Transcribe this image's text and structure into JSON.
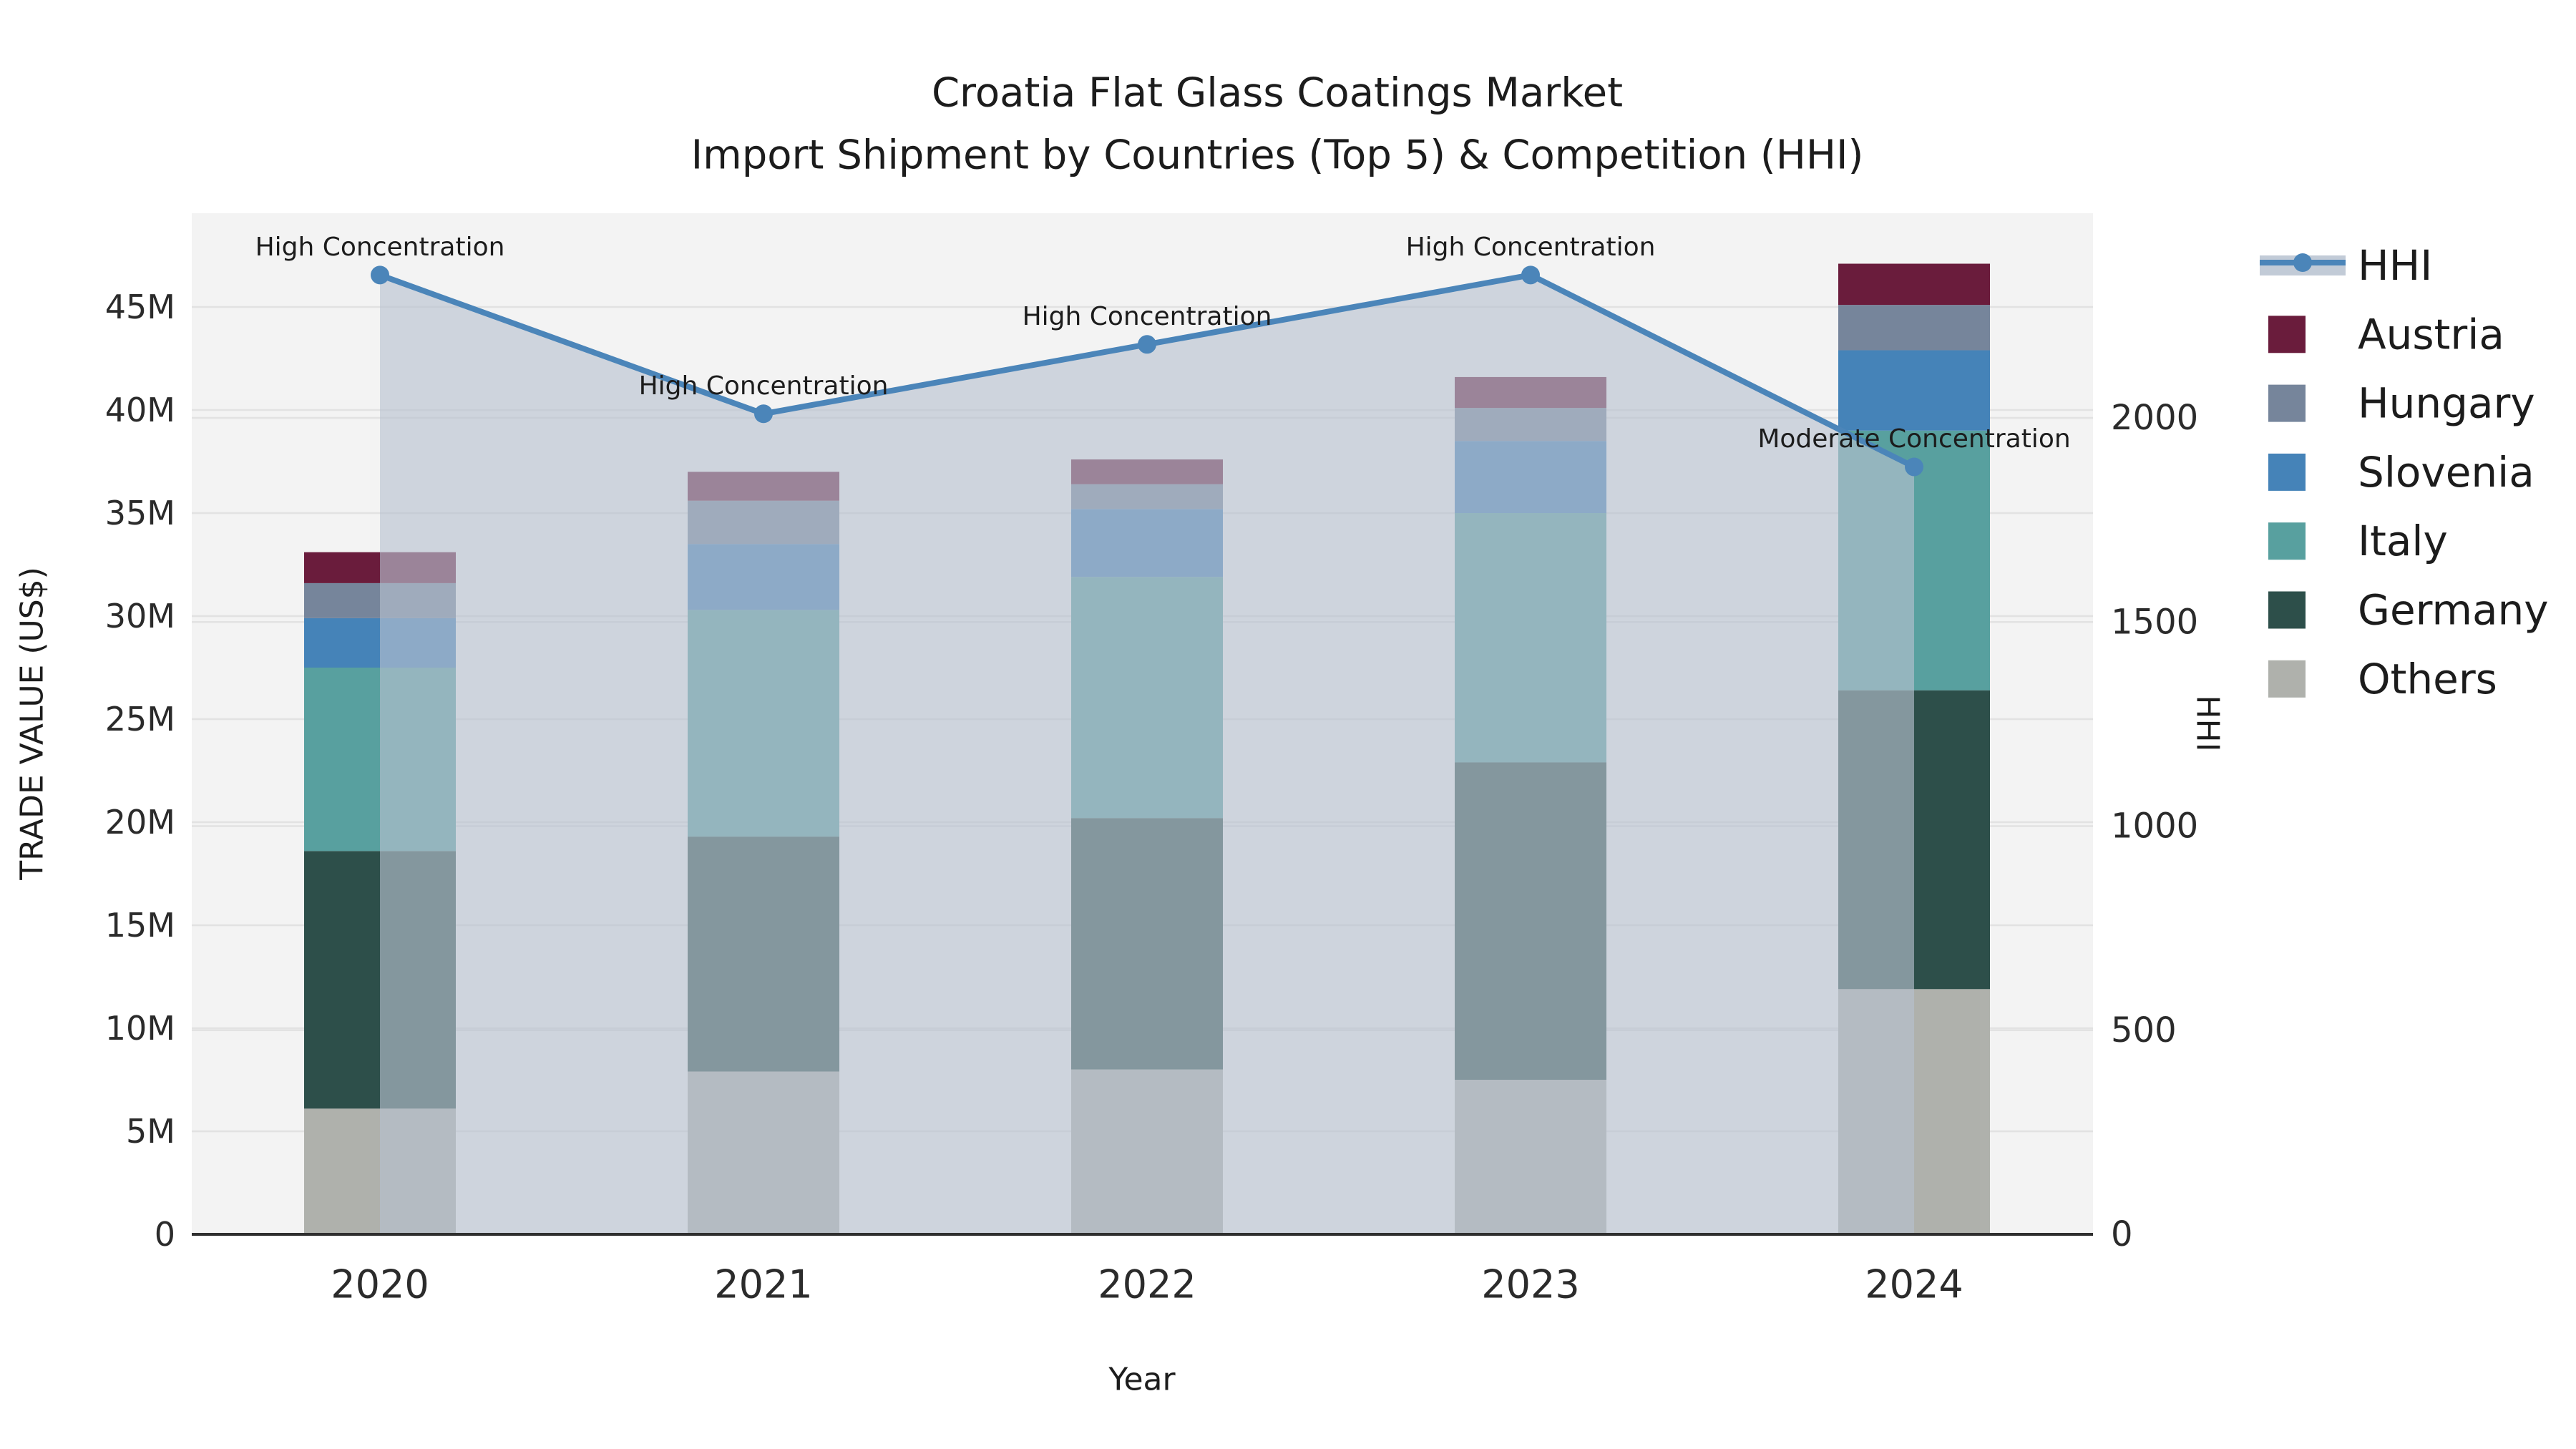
{
  "title": {
    "line1": "Croatia Flat Glass Coatings Market",
    "line2": "Import Shipment by Countries (Top 5) & Competition (HHI)"
  },
  "chart_data": {
    "type": "stacked-bar+line",
    "unit": "US$ millions (left axis), HHI index (right axis)",
    "x_categories": [
      "2020",
      "2021",
      "2022",
      "2023",
      "2024"
    ],
    "xlabel": "Year",
    "ylabel_left": "TRADE VALUE (US$)",
    "ylabel_right": "HHI",
    "ylim_left_millions": [
      0,
      49.5
    ],
    "ylim_right_hhi": [
      0,
      2500
    ],
    "grid": "horizontal",
    "y_left_ticks": [
      {
        "v": 0,
        "label": "0"
      },
      {
        "v": 5,
        "label": "5M"
      },
      {
        "v": 10,
        "label": "10M"
      },
      {
        "v": 15,
        "label": "15M"
      },
      {
        "v": 20,
        "label": "20M"
      },
      {
        "v": 25,
        "label": "25M"
      },
      {
        "v": 30,
        "label": "30M"
      },
      {
        "v": 35,
        "label": "35M"
      },
      {
        "v": 40,
        "label": "40M"
      },
      {
        "v": 45,
        "label": "45M"
      }
    ],
    "y_right_ticks": [
      {
        "v": 0,
        "label": "0"
      },
      {
        "v": 500,
        "label": "500"
      },
      {
        "v": 1000,
        "label": "1000"
      },
      {
        "v": 1500,
        "label": "1500"
      },
      {
        "v": 2000,
        "label": "2000"
      }
    ],
    "stack_order": "bottom to top",
    "series": [
      {
        "name": "Others",
        "color": "#AFB1AC",
        "values": [
          6.1,
          7.9,
          8.0,
          7.5,
          11.9
        ]
      },
      {
        "name": "Germany",
        "color": "#2D4F4A",
        "values": [
          12.5,
          11.4,
          12.2,
          15.4,
          14.5
        ]
      },
      {
        "name": "Italy",
        "color": "#58A09F",
        "values": [
          8.9,
          11.0,
          11.7,
          12.1,
          12.6
        ]
      },
      {
        "name": "Slovenia",
        "color": "#4583B8",
        "values": [
          2.4,
          3.2,
          3.3,
          3.5,
          3.9
        ]
      },
      {
        "name": "Hungary",
        "color": "#76859B",
        "values": [
          1.7,
          2.1,
          1.2,
          1.6,
          2.2
        ]
      },
      {
        "name": "Austria",
        "color": "#6A1C3C",
        "values": [
          1.5,
          1.4,
          1.2,
          1.5,
          2.0
        ]
      }
    ],
    "bar_totals_millions": [
      33.1,
      37.0,
      37.6,
      41.6,
      47.1
    ],
    "hhi_line": {
      "name": "HHI",
      "values": [
        2350,
        2010,
        2180,
        2350,
        1880
      ],
      "color": "#4B85B9",
      "area_fill": "rgba(183,194,208,0.63)",
      "marker": "circle"
    },
    "annotations": [
      {
        "x": "2020",
        "text": "High Concentration"
      },
      {
        "x": "2021",
        "text": "High Concentration"
      },
      {
        "x": "2022",
        "text": "High Concentration"
      },
      {
        "x": "2023",
        "text": "High Concentration"
      },
      {
        "x": "2024",
        "text": "Moderate Concentration"
      }
    ]
  },
  "legend": {
    "position": "right",
    "items": [
      {
        "label": "HHI",
        "type": "line",
        "color": "#4B85B9",
        "band": "rgba(183,194,208,0.85)"
      },
      {
        "label": "Austria",
        "type": "box",
        "color": "#6A1C3C"
      },
      {
        "label": "Hungary",
        "type": "box",
        "color": "#76859B"
      },
      {
        "label": "Slovenia",
        "type": "box",
        "color": "#4583B8"
      },
      {
        "label": "Italy",
        "type": "box",
        "color": "#58A09F"
      },
      {
        "label": "Germany",
        "type": "box",
        "color": "#2D4F4A"
      },
      {
        "label": "Others",
        "type": "box",
        "color": "#AFB1AC"
      }
    ]
  },
  "style": {
    "plot_bg": "#f3f3f3",
    "gridline": "#e2e2e2",
    "axis_line": "#2f2f2f",
    "text": "#1c1c1c"
  }
}
